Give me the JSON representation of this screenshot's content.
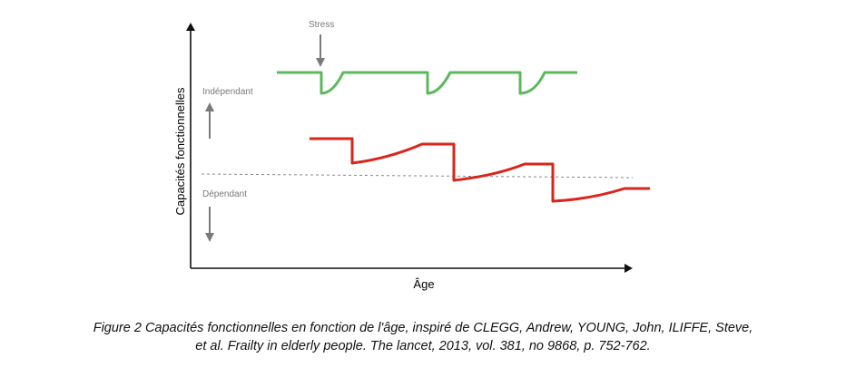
{
  "figure": {
    "stress_label": "Stress",
    "independent_label": "Indépendant",
    "dependent_label": "Dépendant",
    "y_axis_title": "Capacités fonctionnelles",
    "x_axis_title": "Âge",
    "colors": {
      "green_curve": "#5cb85c",
      "red_curve": "#d9261c",
      "axis": "#111111",
      "arrow": "#7a7a7a",
      "threshold": "#888888"
    }
  },
  "caption": {
    "line1": "Figure 2 Capacités fonctionnelles en fonction de l'âge, inspiré de CLEGG, Andrew, YOUNG, John, ILIFFE, Steve,",
    "line2": "et al. Frailty in elderly people. The lancet, 2013, vol. 381, no 9868, p. 752-762."
  }
}
